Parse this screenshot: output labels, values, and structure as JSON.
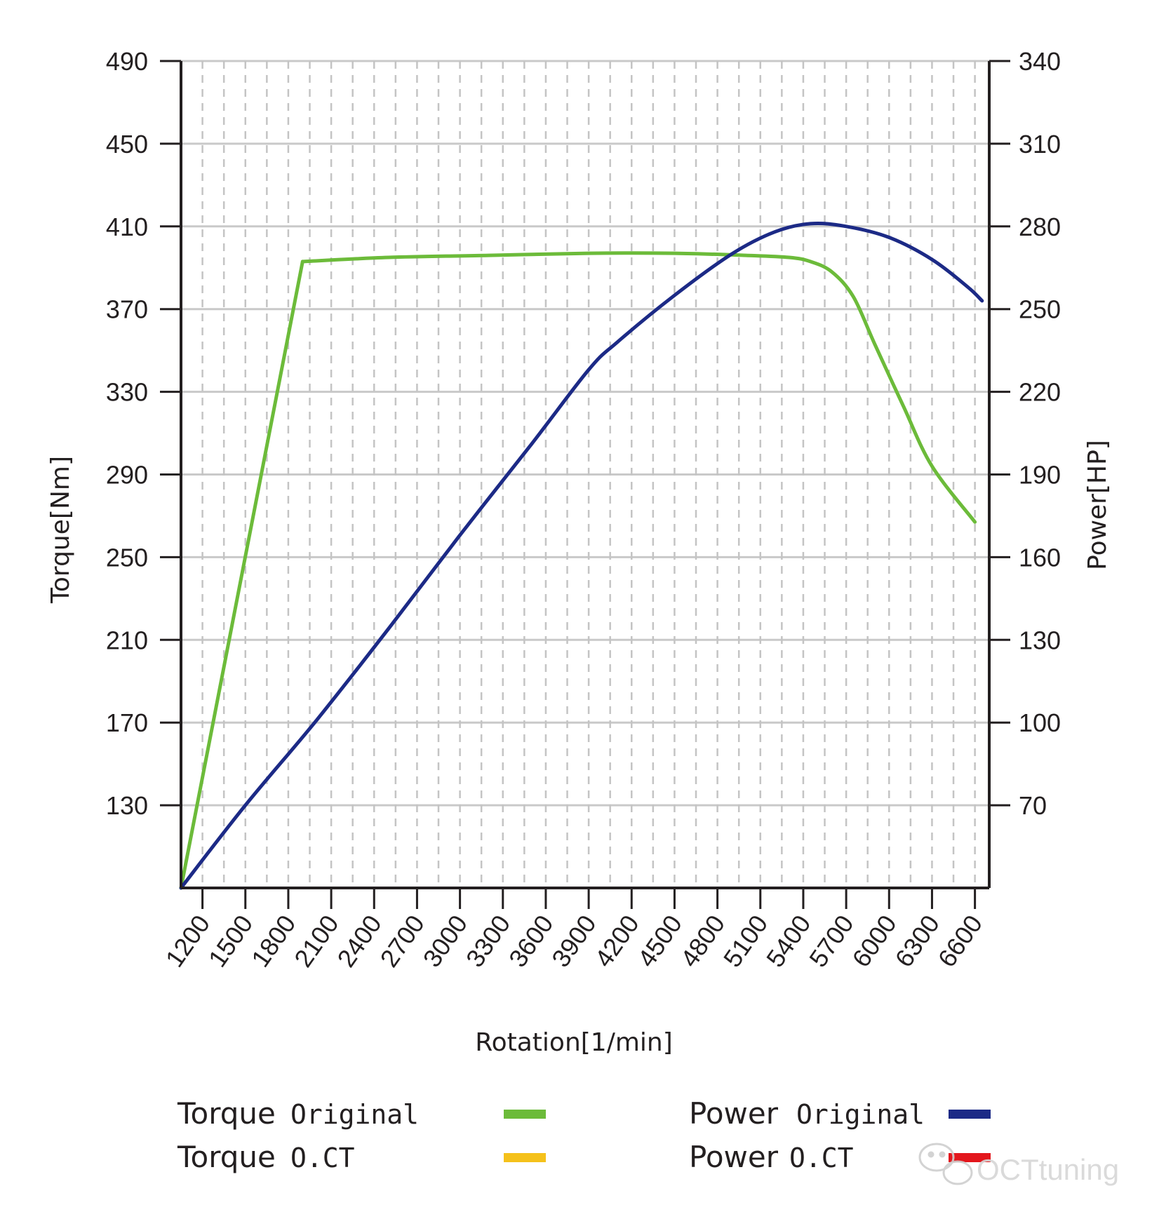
{
  "chart_data": {
    "type": "line",
    "x_label": "Rotation[1/min]",
    "y_left_label": "Torque[Nm]",
    "y_right_label": "Power[HP]",
    "x_range": [
      1050,
      6700
    ],
    "x_ticks": [
      "1200",
      "1500",
      "1800",
      "2100",
      "2400",
      "2700",
      "3000",
      "3300",
      "3600",
      "3900",
      "4200",
      "4500",
      "4800",
      "5100",
      "5400",
      "5700",
      "6000",
      "6300",
      "6600"
    ],
    "y_left_range": [
      90,
      490
    ],
    "y_left_ticks": [
      "490",
      "450",
      "410",
      "370",
      "330",
      "290",
      "250",
      "210",
      "170",
      "130"
    ],
    "y_right_range": [
      40,
      340
    ],
    "y_right_ticks": [
      "340",
      "310",
      "280",
      "250",
      "220",
      "190",
      "160",
      "130",
      "100",
      "70"
    ],
    "grid": true,
    "series": [
      {
        "name": "Torque Original",
        "axis": "left",
        "color": "#6cbb3a",
        "x": [
          1050,
          1900,
          2500,
          3200,
          3900,
          4500,
          5000,
          5300,
          5450,
          5600,
          5750,
          5900,
          6100,
          6300,
          6600
        ],
        "y": [
          90,
          393,
          395,
          396,
          397,
          397,
          396,
          395,
          393,
          388,
          376,
          353,
          323,
          294,
          267
        ]
      },
      {
        "name": "Power Original",
        "axis": "right",
        "color": "#1c2a86",
        "x": [
          1050,
          1500,
          2000,
          2500,
          3000,
          3500,
          3900,
          4100,
          4500,
          4900,
          5200,
          5450,
          5700,
          6000,
          6300,
          6550,
          6650
        ],
        "y": [
          40,
          70,
          101,
          134,
          168,
          201,
          228,
          238,
          255,
          270,
          278,
          281,
          280,
          276,
          268,
          258,
          253
        ]
      }
    ],
    "legend": [
      {
        "name": "Torque",
        "variant": "Original",
        "color": "#6cbb3a"
      },
      {
        "name": "Torque",
        "variant": "O.CT",
        "color": "#f5c11b"
      },
      {
        "name": "Power",
        "variant": "Original",
        "color": "#1c2a86"
      },
      {
        "name": "Power",
        "variant": "O.CT",
        "color": "#e3171d"
      }
    ],
    "legend_placement": "bottom",
    "watermark": "OCTtuning"
  }
}
